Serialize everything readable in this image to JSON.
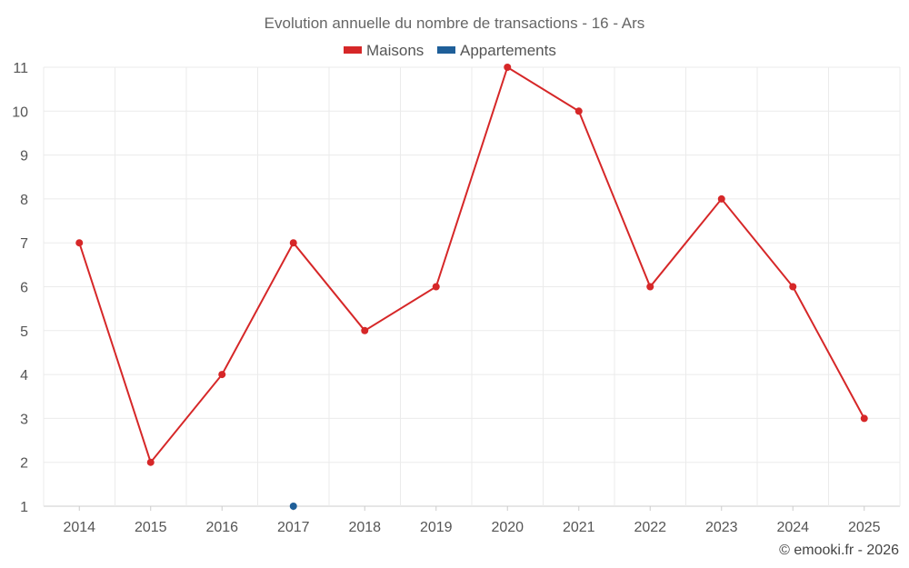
{
  "chart_data": {
    "type": "line",
    "title": "Evolution annuelle du nombre de transactions - 16 - Ars",
    "categories": [
      "2014",
      "2015",
      "2016",
      "2017",
      "2018",
      "2019",
      "2020",
      "2021",
      "2022",
      "2023",
      "2024",
      "2025"
    ],
    "yticks": [
      "1",
      "2",
      "3",
      "4",
      "5",
      "6",
      "7",
      "8",
      "9",
      "10",
      "11"
    ],
    "ylim": [
      1,
      11
    ],
    "grid": true,
    "legend_position": "top-center",
    "series": [
      {
        "name": "Maisons",
        "color": "#d62728",
        "values": [
          7,
          2,
          4,
          7,
          5,
          6,
          11,
          10,
          6,
          8,
          6,
          3
        ]
      },
      {
        "name": "Appartements",
        "color": "#1f5f99",
        "values": [
          null,
          null,
          null,
          1,
          null,
          null,
          null,
          null,
          null,
          null,
          null,
          null
        ]
      }
    ],
    "credit": "© emooki.fr - 2026"
  }
}
